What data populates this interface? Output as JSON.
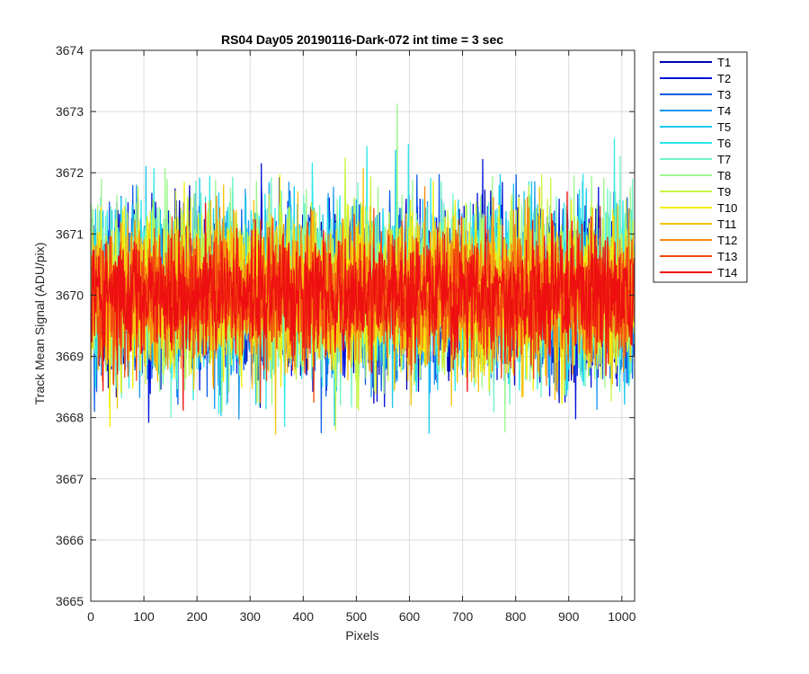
{
  "chart_data": {
    "type": "line",
    "title": "RS04 Day05 20190116-Dark-072 int time = 3 sec",
    "xlabel": "Pixels",
    "ylabel": "Track Mean Signal (ADU/pix)",
    "xlim": [
      0,
      1024
    ],
    "ylim": [
      3665,
      3674
    ],
    "xticks": [
      0,
      100,
      200,
      300,
      400,
      500,
      600,
      700,
      800,
      900,
      1000
    ],
    "yticks": [
      3665,
      3666,
      3667,
      3668,
      3669,
      3670,
      3671,
      3672,
      3673,
      3674
    ],
    "grid": true,
    "legend_position": "outside-top-right",
    "x_range_note": "1 to 1024 pixels per series",
    "series": [
      {
        "name": "T1",
        "color": "#0000b0",
        "center": 3670.0,
        "spread": 1.2
      },
      {
        "name": "T2",
        "color": "#0011d9",
        "center": 3670.0,
        "spread": 1.2
      },
      {
        "name": "T3",
        "color": "#0f5be6",
        "center": 3670.0,
        "spread": 1.2
      },
      {
        "name": "T4",
        "color": "#1a97ee",
        "center": 3670.1,
        "spread": 1.2
      },
      {
        "name": "T5",
        "color": "#19c8f0",
        "center": 3670.1,
        "spread": 1.25
      },
      {
        "name": "T6",
        "color": "#2ee8ea",
        "center": 3670.1,
        "spread": 1.25
      },
      {
        "name": "T7",
        "color": "#6ff5c6",
        "center": 3670.1,
        "spread": 1.2
      },
      {
        "name": "T8",
        "color": "#9cf78e",
        "center": 3670.1,
        "spread": 1.2
      },
      {
        "name": "T9",
        "color": "#c9f544",
        "center": 3670.1,
        "spread": 1.2
      },
      {
        "name": "T10",
        "color": "#f3ee0c",
        "center": 3670.0,
        "spread": 1.15
      },
      {
        "name": "T11",
        "color": "#f7c30f",
        "center": 3670.0,
        "spread": 1.1
      },
      {
        "name": "T12",
        "color": "#f48a10",
        "center": 3670.0,
        "spread": 1.0
      },
      {
        "name": "T13",
        "color": "#f24a10",
        "center": 3670.0,
        "spread": 0.95
      },
      {
        "name": "T14",
        "color": "#ee1010",
        "center": 3670.0,
        "spread": 0.9
      }
    ]
  }
}
